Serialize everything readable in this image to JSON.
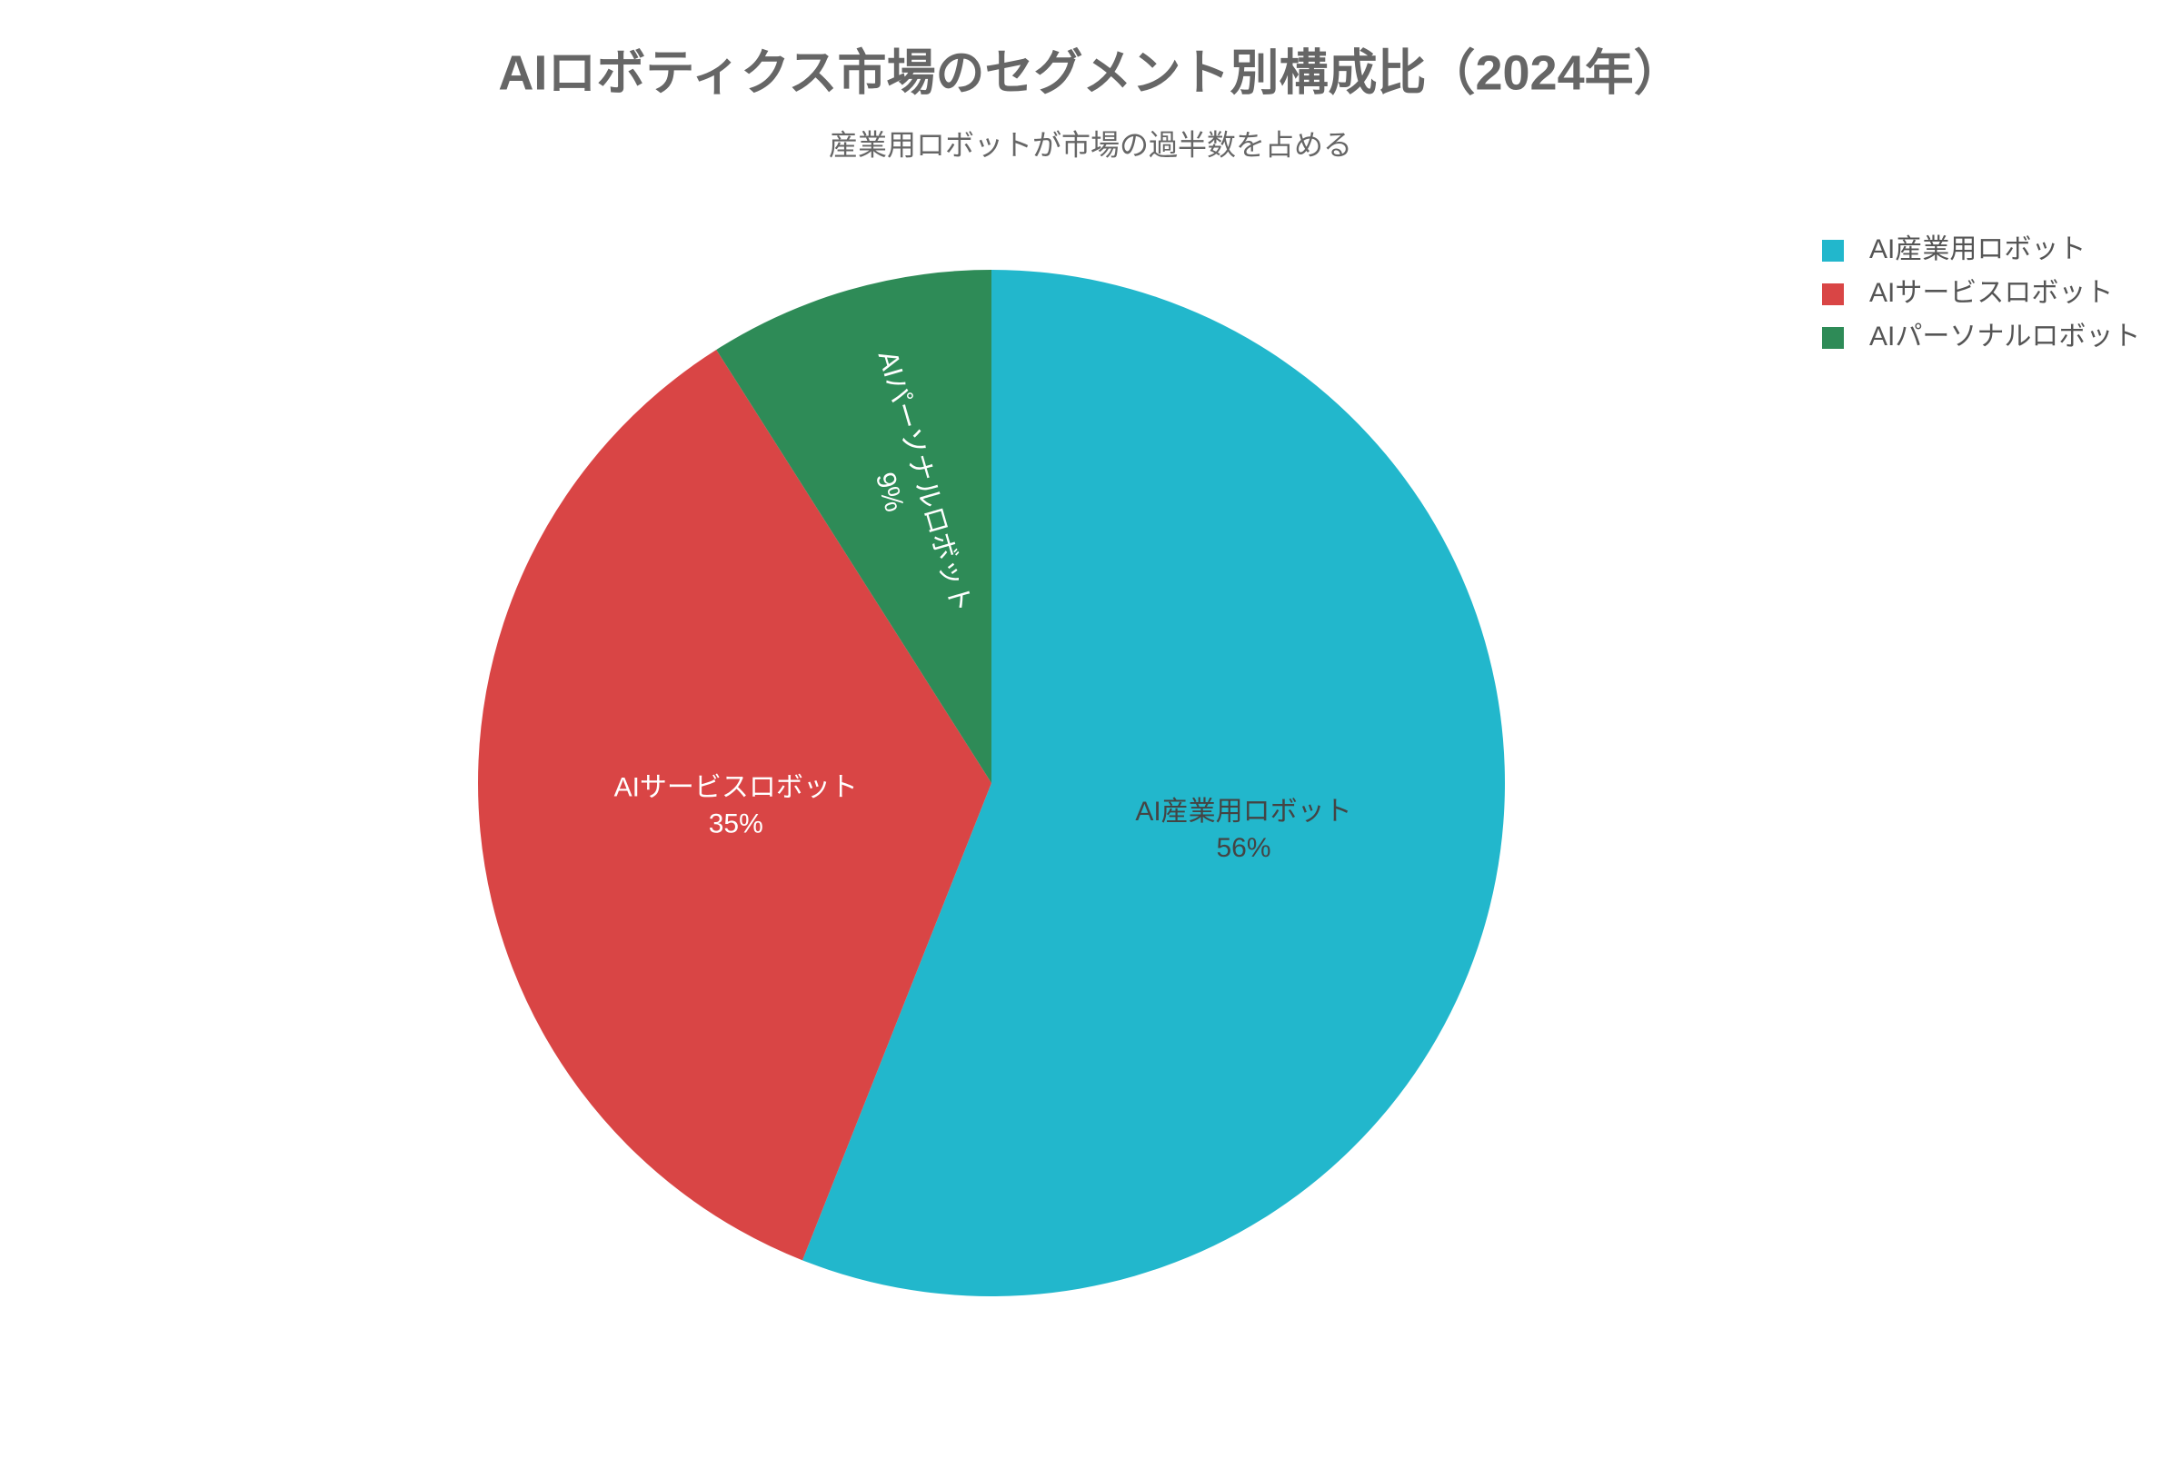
{
  "chart_data": {
    "type": "pie",
    "title": "AIロボティクス市場のセグメント別構成比（2024年）",
    "subtitle": "産業用ロボットが市場の過半数を占める",
    "categories": [
      "AI産業用ロボット",
      "AIサービスロボット",
      "AIパーソナルロボット"
    ],
    "values": [
      56,
      35,
      9
    ],
    "value_labels": [
      "56%",
      "35%",
      "9%"
    ],
    "colors": [
      "#22b7cc",
      "#d94545",
      "#2e8b57"
    ],
    "legend": "top-right"
  }
}
